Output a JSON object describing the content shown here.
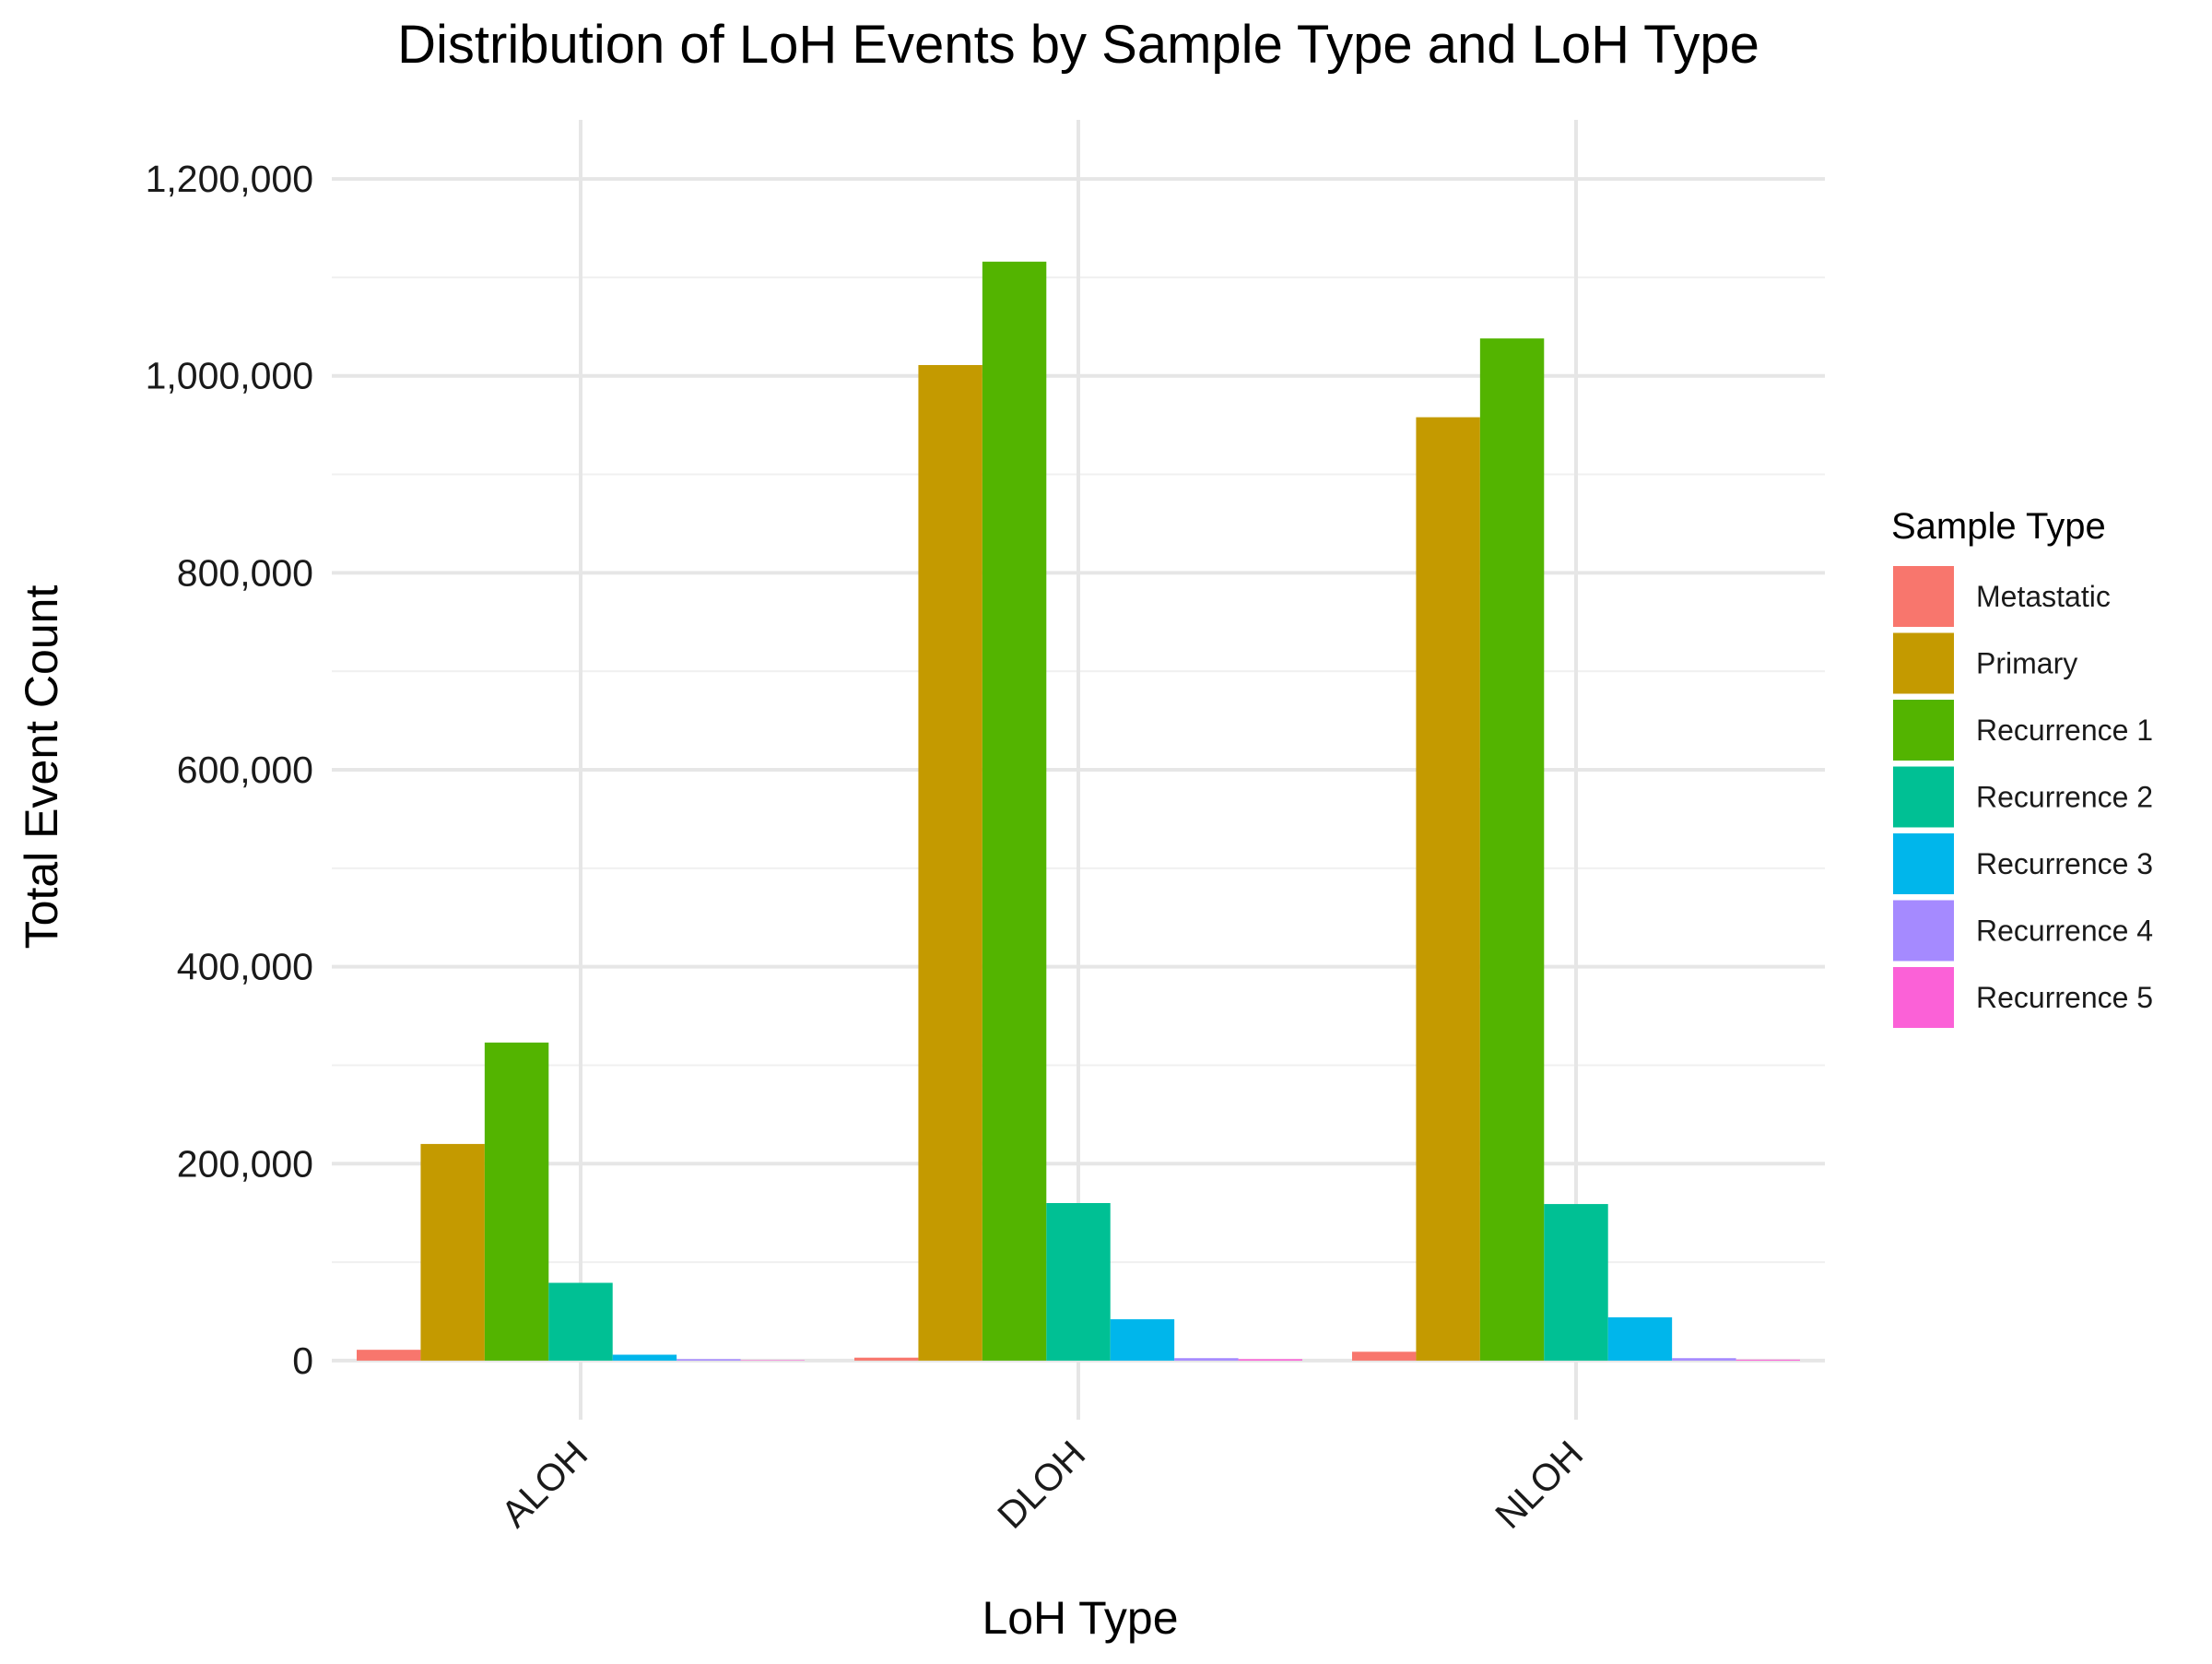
{
  "chart_data": {
    "type": "bar",
    "title": "Distribution of LoH Events by Sample Type and LoH Type",
    "xlabel": "LoH Type",
    "ylabel": "Total Event Count",
    "categories": [
      "ALOH",
      "DLOH",
      "NLOH"
    ],
    "ylim": [
      -60000,
      1260000
    ],
    "yticks": [
      0,
      200000,
      400000,
      600000,
      800000,
      1000000,
      1200000
    ],
    "ytick_labels": [
      "0",
      "200,000",
      "400,000",
      "600,000",
      "800,000",
      "1,000,000",
      "1,200,000"
    ],
    "grid": true,
    "legend": {
      "title": "Sample Type",
      "position": "right"
    },
    "series": [
      {
        "name": "Metastatic",
        "color": "#F8766D",
        "values": [
          11000,
          3000,
          9000
        ]
      },
      {
        "name": "Primary",
        "color": "#C49A00",
        "values": [
          220000,
          1011000,
          958000
        ]
      },
      {
        "name": "Recurrence 1",
        "color": "#53B400",
        "values": [
          323000,
          1116000,
          1038000
        ]
      },
      {
        "name": "Recurrence 2",
        "color": "#00C094",
        "values": [
          79000,
          160000,
          159000
        ]
      },
      {
        "name": "Recurrence 3",
        "color": "#00B6EB",
        "values": [
          6000,
          42000,
          44000
        ]
      },
      {
        "name": "Recurrence 4",
        "color": "#A58AFF",
        "values": [
          1500,
          2500,
          2500
        ]
      },
      {
        "name": "Recurrence 5",
        "color": "#FB61D7",
        "values": [
          500,
          1500,
          1000
        ]
      }
    ]
  }
}
